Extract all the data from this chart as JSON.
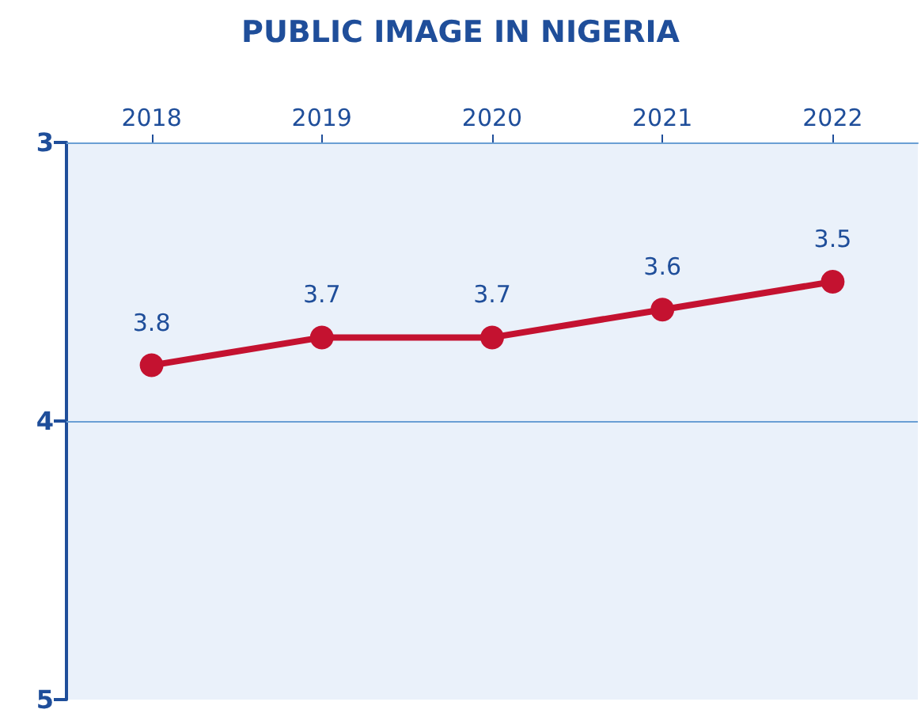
{
  "chart_data": {
    "type": "line",
    "title": "PUBLIC IMAGE IN NIGERIA",
    "categories": [
      "2018",
      "2019",
      "2020",
      "2021",
      "2022"
    ],
    "series": [
      {
        "color": "#c41230",
        "values": [
          3.8,
          3.7,
          3.7,
          3.6,
          3.5
        ]
      }
    ],
    "ylim": [
      5,
      3
    ],
    "yticks": [
      3,
      4,
      5
    ],
    "marker": "circle",
    "data_labels": true,
    "ref_lines": [
      {
        "axis": "y",
        "value": 4,
        "color": "#6a9fd4"
      }
    ]
  }
}
